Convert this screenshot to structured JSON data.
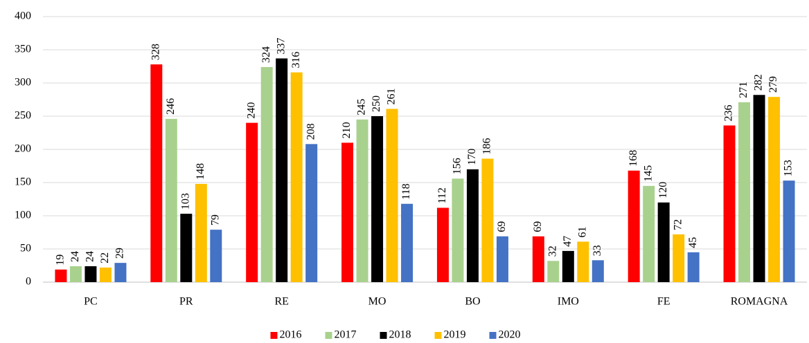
{
  "chart_data": {
    "type": "bar",
    "categories": [
      "PC",
      "PR",
      "RE",
      "MO",
      "BO",
      "IMO",
      "FE",
      "ROMAGNA"
    ],
    "series": [
      {
        "name": "2016",
        "color": "#ff0000",
        "values": [
          19,
          328,
          240,
          210,
          112,
          69,
          168,
          236
        ]
      },
      {
        "name": "2017",
        "color": "#a9d18e",
        "values": [
          24,
          246,
          324,
          245,
          156,
          32,
          145,
          271
        ]
      },
      {
        "name": "2018",
        "color": "#000000",
        "values": [
          24,
          103,
          337,
          250,
          170,
          47,
          120,
          282
        ]
      },
      {
        "name": "2019",
        "color": "#ffc000",
        "values": [
          22,
          148,
          316,
          261,
          186,
          61,
          72,
          279
        ]
      },
      {
        "name": "2020",
        "color": "#4472c4",
        "values": [
          29,
          79,
          208,
          118,
          69,
          33,
          45,
          153
        ]
      }
    ],
    "ylim": [
      0,
      400
    ],
    "yticks": [
      0,
      50,
      100,
      150,
      200,
      250,
      300,
      350,
      400
    ],
    "grid": true,
    "legend": "bottom",
    "data_labels": true
  }
}
